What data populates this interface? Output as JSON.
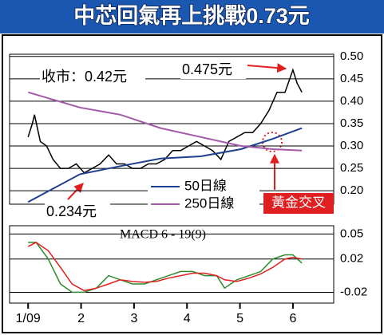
{
  "chart_data": [
    {
      "type": "line",
      "title": "中芯回氣再上挑戰0.73元",
      "xlim": [
        0.65,
        6.77
      ],
      "ylim": [
        0.17,
        0.505
      ],
      "yticks": [
        {
          "value": 0.5,
          "label": "0.50"
        },
        0.45,
        {
          "value": 0.4,
          "label": "0.40"
        },
        0.35,
        {
          "value": 0.3,
          "label": "0.30"
        },
        0.25,
        {
          "value": 0.2,
          "label": "0.20"
        }
      ],
      "grid": true,
      "legend": "lower center",
      "series": [
        {
          "color": "#000000",
          "x": [
            1.0,
            1.08,
            1.12,
            1.23,
            1.35,
            1.47,
            1.61,
            1.76,
            1.91,
            2.06,
            2.21,
            2.36,
            2.52,
            2.67,
            2.82,
            2.97,
            3.12,
            3.27,
            3.42,
            3.58,
            3.73,
            3.88,
            4.03,
            4.18,
            4.33,
            4.48,
            4.64,
            4.79,
            4.94,
            5.09,
            5.24,
            5.39,
            5.55,
            5.7,
            5.85,
            6.0,
            6.08,
            6.17
          ],
          "values": [
            0.32,
            0.35,
            0.37,
            0.31,
            0.3,
            0.27,
            0.25,
            0.25,
            0.26,
            0.24,
            0.25,
            0.26,
            0.28,
            0.26,
            0.26,
            0.25,
            0.25,
            0.26,
            0.26,
            0.27,
            0.29,
            0.29,
            0.3,
            0.31,
            0.3,
            0.29,
            0.27,
            0.31,
            0.32,
            0.33,
            0.33,
            0.35,
            0.38,
            0.42,
            0.42,
            0.47,
            0.44,
            0.42
          ]
        },
        {
          "name": "50日線",
          "color": "#1f3f8f",
          "x": [
            1.0,
            1.98,
            2.74,
            3.5,
            4.26,
            5.02,
            5.62,
            6.17
          ],
          "values": [
            0.175,
            0.237,
            0.255,
            0.272,
            0.277,
            0.293,
            0.316,
            0.34
          ]
        },
        {
          "name": "250日線",
          "color": "#a35aa8",
          "x": [
            1.0,
            1.98,
            2.74,
            3.5,
            4.26,
            5.02,
            5.62,
            6.17
          ],
          "values": [
            0.42,
            0.386,
            0.37,
            0.34,
            0.32,
            0.3,
            0.293,
            0.29
          ]
        }
      ],
      "annotations": [
        "收市：0.42元",
        "0.475元",
        "0.234元",
        "黃金交叉"
      ]
    },
    {
      "type": "line",
      "title": "MACD 6 - 19(9)",
      "xlim": [
        0.65,
        6.77
      ],
      "ylim": [
        -0.033,
        0.06
      ],
      "yticks": [
        0.05,
        0.02,
        -0.02
      ],
      "grid": true,
      "xticks": [
        {
          "value": 1,
          "label": "1/09"
        },
        2,
        3,
        4,
        5,
        6
      ],
      "series": [
        {
          "color": "#2e8b2e",
          "x": [
            1.0,
            1.15,
            1.38,
            1.61,
            1.83,
            2.06,
            2.29,
            2.52,
            2.74,
            2.97,
            3.2,
            3.42,
            3.65,
            3.88,
            4.11,
            4.33,
            4.56,
            4.71,
            4.94,
            5.17,
            5.39,
            5.62,
            5.85,
            6.0,
            6.17
          ],
          "values": [
            0.04,
            0.04,
            0.02,
            -0.01,
            -0.02,
            -0.02,
            -0.015,
            0.0,
            -0.005,
            -0.01,
            -0.01,
            -0.005,
            0.0,
            0.005,
            0.005,
            0.0,
            0.0,
            -0.015,
            -0.005,
            0.0,
            0.005,
            0.02,
            0.025,
            0.025,
            0.015
          ]
        },
        {
          "color": "#e02020",
          "x": [
            1.0,
            1.15,
            1.38,
            1.61,
            1.83,
            2.06,
            2.29,
            2.52,
            2.74,
            2.97,
            3.2,
            3.42,
            3.65,
            3.88,
            4.11,
            4.33,
            4.56,
            4.71,
            4.94,
            5.17,
            5.39,
            5.62,
            5.85,
            6.0,
            6.17
          ],
          "values": [
            0.035,
            0.04,
            0.03,
            0.01,
            -0.01,
            -0.018,
            -0.015,
            -0.01,
            -0.005,
            -0.007,
            -0.008,
            -0.007,
            -0.003,
            0.0,
            0.003,
            0.003,
            0.0,
            -0.005,
            -0.007,
            -0.003,
            0.002,
            0.01,
            0.02,
            0.022,
            0.02
          ]
        }
      ]
    }
  ]
}
